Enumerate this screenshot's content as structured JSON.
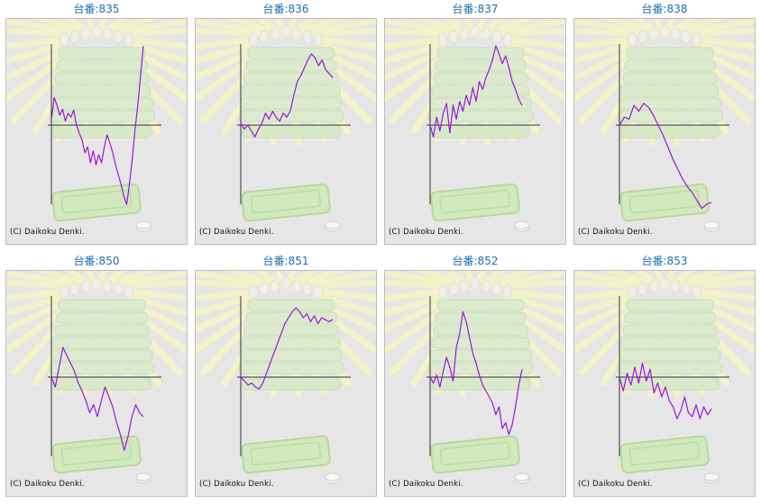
{
  "copyright": "(C) Daikoku Denki.",
  "colors": {
    "line": "#9a14e0",
    "axis": "#333333",
    "title": "#1a6fb0",
    "background": "#e6e6e6"
  },
  "chart_data": [
    {
      "type": "line",
      "title": "台番:835",
      "values": [
        5,
        28,
        20,
        10,
        16,
        4,
        12,
        8,
        15,
        0,
        -8,
        -15,
        -28,
        -22,
        -38,
        -26,
        -40,
        -30,
        -38,
        -22,
        -10,
        -18,
        -28,
        -40,
        -50,
        -60,
        -72,
        -80,
        -60,
        -35,
        -5,
        20,
        50,
        80
      ]
    },
    {
      "type": "line",
      "title": "台番:836",
      "values": [
        2,
        -4,
        0,
        -6,
        -12,
        -4,
        2,
        12,
        6,
        14,
        8,
        4,
        12,
        8,
        14,
        30,
        44,
        50,
        58,
        66,
        72,
        68,
        60,
        66,
        56,
        52,
        48
      ]
    },
    {
      "type": "line",
      "title": "台番:837",
      "values": [
        0,
        -12,
        8,
        -6,
        12,
        22,
        -8,
        20,
        6,
        24,
        14,
        30,
        20,
        38,
        24,
        44,
        36,
        48,
        56,
        66,
        80,
        72,
        62,
        70,
        58,
        44,
        36,
        26,
        20
      ]
    },
    {
      "type": "line",
      "title": "台番:838",
      "values": [
        0,
        8,
        6,
        20,
        14,
        22,
        18,
        10,
        0,
        -10,
        -22,
        -34,
        -44,
        -54,
        -62,
        -68,
        -76,
        -84,
        -80,
        -78
      ]
    },
    {
      "type": "line",
      "title": "台番:850",
      "values": [
        0,
        -10,
        10,
        30,
        22,
        14,
        6,
        -6,
        -14,
        -24,
        -36,
        -28,
        -40,
        -24,
        -10,
        -20,
        -30,
        -46,
        -58,
        -74,
        -60,
        -40,
        -28,
        -36,
        -40
      ]
    },
    {
      "type": "line",
      "title": "台番:851",
      "values": [
        0,
        -4,
        -8,
        -6,
        -10,
        -12,
        -6,
        4,
        14,
        24,
        34,
        44,
        54,
        60,
        66,
        70,
        66,
        60,
        64,
        56,
        62,
        54,
        60,
        58,
        56,
        58
      ]
    },
    {
      "type": "line",
      "title": "台番:852",
      "values": [
        0,
        -6,
        2,
        -10,
        6,
        20,
        10,
        -4,
        30,
        44,
        66,
        56,
        40,
        24,
        14,
        2,
        -8,
        -14,
        -20,
        -26,
        -38,
        -30,
        -52,
        -46,
        -58,
        -48,
        -30,
        -8,
        8
      ]
    },
    {
      "type": "line",
      "title": "台番:853",
      "values": [
        0,
        -14,
        4,
        -8,
        10,
        -6,
        14,
        -4,
        8,
        -16,
        -6,
        -20,
        -10,
        -24,
        -30,
        -42,
        -34,
        -20,
        -36,
        -40,
        -28,
        -42,
        -30,
        -38,
        -32
      ]
    }
  ]
}
